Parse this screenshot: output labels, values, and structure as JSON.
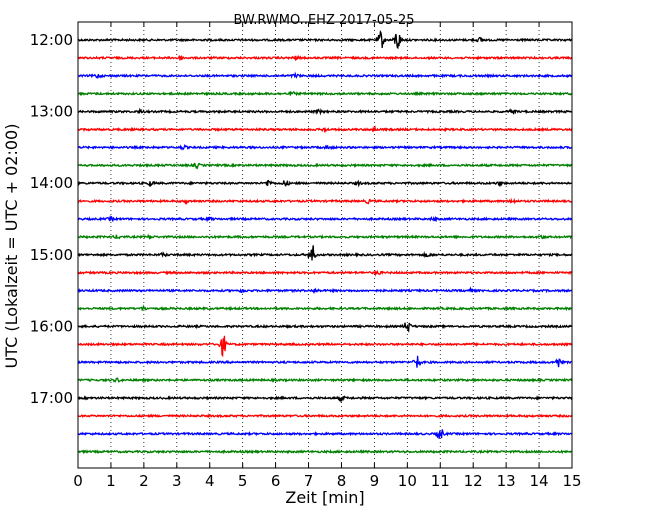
{
  "chart_data": {
    "type": "line",
    "title": "BW.RWMO..EHZ 2017-05-25",
    "xlabel": "Zeit  [min]",
    "ylabel": "UTC (Lokalzeit = UTC + 02:00)",
    "xlim": [
      0,
      15
    ],
    "x_ticks": [
      "0",
      "1",
      "2",
      "3",
      "4",
      "5",
      "6",
      "7",
      "8",
      "9",
      "10",
      "11",
      "12",
      "13",
      "14",
      "15"
    ],
    "y_ticks": [
      "12:00",
      "13:00",
      "14:00",
      "15:00",
      "16:00",
      "17:00"
    ],
    "grid": "vertical dotted",
    "trace_colors": [
      "#000000",
      "#ff0000",
      "#0000ff",
      "#008000"
    ],
    "traces": [
      {
        "start": "12:00",
        "color": "#000000",
        "events": [
          [
            9.2,
            9
          ],
          [
            9.7,
            11
          ],
          [
            12.2,
            2
          ]
        ]
      },
      {
        "start": "12:15",
        "color": "#ff0000",
        "events": [
          [
            3.1,
            2
          ],
          [
            6.6,
            1.5
          ]
        ]
      },
      {
        "start": "12:30",
        "color": "#0000ff",
        "events": [
          [
            0.6,
            2
          ],
          [
            6.6,
            1.5
          ]
        ]
      },
      {
        "start": "12:45",
        "color": "#008000",
        "events": [
          [
            6.5,
            1.5
          ]
        ]
      },
      {
        "start": "13:00",
        "color": "#000000",
        "events": [
          [
            1.9,
            1.5
          ],
          [
            7.3,
            1.5
          ],
          [
            13.2,
            2
          ]
        ]
      },
      {
        "start": "13:15",
        "color": "#ff0000",
        "events": [
          [
            7.5,
            1.5
          ],
          [
            9.0,
            1.5
          ]
        ]
      },
      {
        "start": "13:30",
        "color": "#0000ff",
        "events": [
          [
            3.2,
            1.5
          ],
          [
            7.6,
            1.5
          ]
        ]
      },
      {
        "start": "13:45",
        "color": "#008000",
        "events": [
          [
            3.6,
            2
          ]
        ]
      },
      {
        "start": "14:00",
        "color": "#000000",
        "events": [
          [
            2.2,
            2
          ],
          [
            5.8,
            3
          ],
          [
            6.3,
            3
          ],
          [
            8.5,
            1.5
          ],
          [
            12.8,
            1.5
          ]
        ]
      },
      {
        "start": "14:15",
        "color": "#ff0000",
        "events": [
          [
            3.3,
            1.5
          ],
          [
            8.8,
            1.5
          ],
          [
            13.2,
            1.5
          ]
        ]
      },
      {
        "start": "14:30",
        "color": "#0000ff",
        "events": [
          [
            1.0,
            1.5
          ],
          [
            4.0,
            1.5
          ],
          [
            10.8,
            1.5
          ]
        ]
      },
      {
        "start": "14:45",
        "color": "#008000",
        "events": [
          [
            1.2,
            1.5
          ],
          [
            2.2,
            1.5
          ],
          [
            14.1,
            1.5
          ]
        ]
      },
      {
        "start": "15:00",
        "color": "#000000",
        "events": [
          [
            2.6,
            1.5
          ],
          [
            7.1,
            11
          ],
          [
            10.6,
            1.5
          ]
        ]
      },
      {
        "start": "15:15",
        "color": "#ff0000",
        "events": [
          [
            9.1,
            1.5
          ]
        ]
      },
      {
        "start": "15:30",
        "color": "#0000ff",
        "events": [
          [
            5.0,
            1.5
          ],
          [
            7.2,
            1.5
          ],
          [
            11.9,
            1.5
          ]
        ]
      },
      {
        "start": "15:45",
        "color": "#008000",
        "events": [
          [
            2.0,
            1.5
          ]
        ]
      },
      {
        "start": "16:00",
        "color": "#000000",
        "events": [
          [
            10.0,
            6
          ]
        ]
      },
      {
        "start": "16:15",
        "color": "#ff0000",
        "events": [
          [
            4.4,
            11
          ]
        ]
      },
      {
        "start": "16:30",
        "color": "#0000ff",
        "events": [
          [
            10.3,
            7
          ],
          [
            14.6,
            5
          ]
        ]
      },
      {
        "start": "16:45",
        "color": "#008000",
        "events": [
          [
            1.2,
            1.5
          ]
        ]
      },
      {
        "start": "17:00",
        "color": "#000000",
        "events": [
          [
            8.0,
            2
          ]
        ]
      },
      {
        "start": "17:15",
        "color": "#ff0000",
        "events": []
      },
      {
        "start": "17:30",
        "color": "#0000ff",
        "events": [
          [
            11.0,
            6
          ]
        ]
      },
      {
        "start": "17:45",
        "color": "#008000",
        "events": []
      }
    ]
  }
}
